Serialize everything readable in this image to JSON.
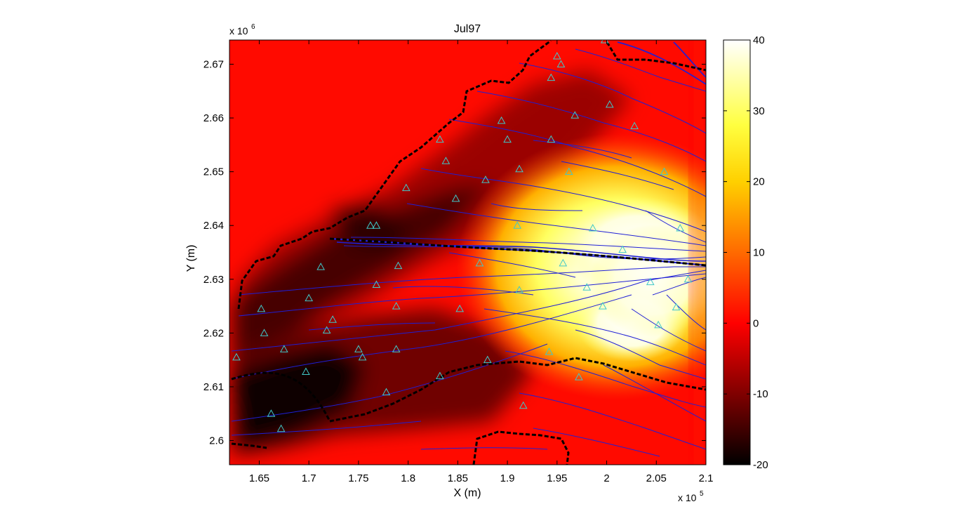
{
  "chart_data": {
    "type": "heatmap",
    "title": "Jul97",
    "xlabel": "X (m)",
    "ylabel": "Y (m)",
    "x_multiplier_label": "x 10",
    "x_multiplier_exp": "5",
    "y_multiplier_label": "x 10",
    "y_multiplier_exp": "6",
    "xlim": [
      1.62,
      2.1
    ],
    "ylim": [
      2.5955,
      2.6745
    ],
    "x_ticks": [
      1.65,
      1.7,
      1.75,
      1.8,
      1.85,
      1.9,
      1.95,
      2.0,
      2.05,
      2.1
    ],
    "x_tick_labels": [
      "1.65",
      "1.7",
      "1.75",
      "1.8",
      "1.85",
      "1.9",
      "1.95",
      "2",
      "2.05",
      "2.1"
    ],
    "y_ticks": [
      2.6,
      2.61,
      2.62,
      2.63,
      2.64,
      2.65,
      2.66,
      2.67
    ],
    "y_tick_labels": [
      "2.6",
      "2.61",
      "2.62",
      "2.63",
      "2.64",
      "2.65",
      "2.66",
      "2.67"
    ],
    "colorbar": {
      "range": [
        -20,
        40
      ],
      "ticks": [
        40,
        30,
        20,
        10,
        0,
        -10,
        -20
      ],
      "tick_labels": [
        "40",
        "30",
        "20",
        "10",
        "0",
        "-10",
        "-20"
      ],
      "colormap": "hot"
    },
    "colors": {
      "background_field": "#ff0a00",
      "river_network": "#1f1fd6",
      "boundary": "#000000",
      "station_marker": "#40c8c8"
    },
    "stations": [
      [
        1.627,
        2.6155
      ],
      [
        1.652,
        2.6245
      ],
      [
        1.655,
        2.62
      ],
      [
        1.662,
        2.605
      ],
      [
        1.672,
        2.6022
      ],
      [
        1.675,
        2.617
      ],
      [
        1.697,
        2.6128
      ],
      [
        1.7,
        2.6265
      ],
      [
        1.712,
        2.6323
      ],
      [
        1.718,
        2.6205
      ],
      [
        1.724,
        2.6225
      ],
      [
        1.75,
        2.617
      ],
      [
        1.754,
        2.6155
      ],
      [
        1.762,
        2.64
      ],
      [
        1.768,
        2.64
      ],
      [
        1.768,
        2.629
      ],
      [
        1.778,
        2.609
      ],
      [
        1.788,
        2.625
      ],
      [
        1.788,
        2.617
      ],
      [
        1.79,
        2.6325
      ],
      [
        1.798,
        2.647
      ],
      [
        1.832,
        2.612
      ],
      [
        1.832,
        2.656
      ],
      [
        1.838,
        2.652
      ],
      [
        1.848,
        2.645
      ],
      [
        1.852,
        2.6245
      ],
      [
        1.872,
        2.633
      ],
      [
        1.878,
        2.6485
      ],
      [
        1.88,
        2.615
      ],
      [
        1.894,
        2.6595
      ],
      [
        1.9,
        2.656
      ],
      [
        1.91,
        2.64
      ],
      [
        1.912,
        2.6505
      ],
      [
        1.912,
        2.628
      ],
      [
        1.916,
        2.6065
      ],
      [
        1.942,
        2.6165
      ],
      [
        1.944,
        2.6675
      ],
      [
        1.944,
        2.656
      ],
      [
        1.95,
        2.6715
      ],
      [
        1.954,
        2.67
      ],
      [
        1.956,
        2.633
      ],
      [
        1.962,
        2.65
      ],
      [
        1.968,
        2.6605
      ],
      [
        1.972,
        2.6118
      ],
      [
        1.98,
        2.6285
      ],
      [
        1.986,
        2.6395
      ],
      [
        1.996,
        2.625
      ],
      [
        1.998,
        2.6745
      ],
      [
        2.003,
        2.6625
      ],
      [
        2.016,
        2.6355
      ],
      [
        2.028,
        2.6585
      ],
      [
        2.044,
        2.6295
      ],
      [
        2.052,
        2.6215
      ],
      [
        2.058,
        2.65
      ],
      [
        2.07,
        2.6248
      ],
      [
        2.074,
        2.6395
      ],
      [
        2.082,
        2.63
      ]
    ]
  }
}
